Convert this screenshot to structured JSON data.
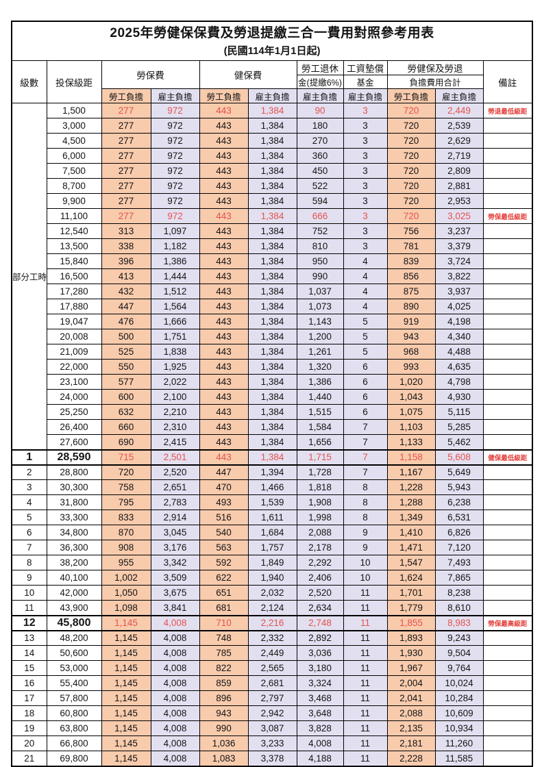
{
  "table": {
    "title": "2025年勞健保保費及勞退提繳三合一費用對照參考用表",
    "subtitle": "(民國114年1月1日起)",
    "colors": {
      "worker_bg": "#F8CBAD",
      "employer_bg": "#E2E0F0",
      "highlight_text": "#E4524E",
      "remark_text": "#E4403C",
      "border": "#000000"
    },
    "header": {
      "level": "級數",
      "bracket": "投保級距",
      "labor_insurance": "勞保費",
      "health_insurance": "健保費",
      "pension_line1": "勞工退休",
      "pension_line2": "金(提繳6%)",
      "wage_fund_line1": "工資墊償",
      "wage_fund_line2": "基金",
      "total_line1": "勞健保及勞退",
      "total_line2": "負擔費用合計",
      "remark": "備註",
      "worker": "勞工負擔",
      "employer": "雇主負擔"
    },
    "part_time_label": "部分工時",
    "rows": [
      {
        "level": "",
        "bracket": "1,500",
        "v": [
          "277",
          "972",
          "443",
          "1,384",
          "90",
          "3",
          "720",
          "2,449"
        ],
        "remark": "勞退最低級距",
        "red": true
      },
      {
        "level": "",
        "bracket": "3,000",
        "v": [
          "277",
          "972",
          "443",
          "1,384",
          "180",
          "3",
          "720",
          "2,539"
        ]
      },
      {
        "level": "",
        "bracket": "4,500",
        "v": [
          "277",
          "972",
          "443",
          "1,384",
          "270",
          "3",
          "720",
          "2,629"
        ]
      },
      {
        "level": "",
        "bracket": "6,000",
        "v": [
          "277",
          "972",
          "443",
          "1,384",
          "360",
          "3",
          "720",
          "2,719"
        ]
      },
      {
        "level": "",
        "bracket": "7,500",
        "v": [
          "277",
          "972",
          "443",
          "1,384",
          "450",
          "3",
          "720",
          "2,809"
        ]
      },
      {
        "level": "",
        "bracket": "8,700",
        "v": [
          "277",
          "972",
          "443",
          "1,384",
          "522",
          "3",
          "720",
          "2,881"
        ]
      },
      {
        "level": "",
        "bracket": "9,900",
        "v": [
          "277",
          "972",
          "443",
          "1,384",
          "594",
          "3",
          "720",
          "2,953"
        ]
      },
      {
        "level": "",
        "bracket": "11,100",
        "v": [
          "277",
          "972",
          "443",
          "1,384",
          "666",
          "3",
          "720",
          "3,025"
        ],
        "remark": "勞保最低級距",
        "red": true
      },
      {
        "level": "",
        "bracket": "12,540",
        "v": [
          "313",
          "1,097",
          "443",
          "1,384",
          "752",
          "3",
          "756",
          "3,237"
        ]
      },
      {
        "level": "",
        "bracket": "13,500",
        "v": [
          "338",
          "1,182",
          "443",
          "1,384",
          "810",
          "3",
          "781",
          "3,379"
        ]
      },
      {
        "level": "",
        "bracket": "15,840",
        "v": [
          "396",
          "1,386",
          "443",
          "1,384",
          "950",
          "4",
          "839",
          "3,724"
        ]
      },
      {
        "level": "",
        "bracket": "16,500",
        "v": [
          "413",
          "1,444",
          "443",
          "1,384",
          "990",
          "4",
          "856",
          "3,822"
        ]
      },
      {
        "level": "",
        "bracket": "17,280",
        "v": [
          "432",
          "1,512",
          "443",
          "1,384",
          "1,037",
          "4",
          "875",
          "3,937"
        ]
      },
      {
        "level": "",
        "bracket": "17,880",
        "v": [
          "447",
          "1,564",
          "443",
          "1,384",
          "1,073",
          "4",
          "890",
          "4,025"
        ]
      },
      {
        "level": "",
        "bracket": "19,047",
        "v": [
          "476",
          "1,666",
          "443",
          "1,384",
          "1,143",
          "5",
          "919",
          "4,198"
        ]
      },
      {
        "level": "",
        "bracket": "20,008",
        "v": [
          "500",
          "1,751",
          "443",
          "1,384",
          "1,200",
          "5",
          "943",
          "4,340"
        ]
      },
      {
        "level": "",
        "bracket": "21,009",
        "v": [
          "525",
          "1,838",
          "443",
          "1,384",
          "1,261",
          "5",
          "968",
          "4,488"
        ]
      },
      {
        "level": "",
        "bracket": "22,000",
        "v": [
          "550",
          "1,925",
          "443",
          "1,384",
          "1,320",
          "6",
          "993",
          "4,635"
        ]
      },
      {
        "level": "",
        "bracket": "23,100",
        "v": [
          "577",
          "2,022",
          "443",
          "1,384",
          "1,386",
          "6",
          "1,020",
          "4,798"
        ]
      },
      {
        "level": "",
        "bracket": "24,000",
        "v": [
          "600",
          "2,100",
          "443",
          "1,384",
          "1,440",
          "6",
          "1,043",
          "4,930"
        ]
      },
      {
        "level": "",
        "bracket": "25,250",
        "v": [
          "632",
          "2,210",
          "443",
          "1,384",
          "1,515",
          "6",
          "1,075",
          "5,115"
        ]
      },
      {
        "level": "",
        "bracket": "26,400",
        "v": [
          "660",
          "2,310",
          "443",
          "1,384",
          "1,584",
          "7",
          "1,103",
          "5,285"
        ]
      },
      {
        "level": "",
        "bracket": "27,600",
        "v": [
          "690",
          "2,415",
          "443",
          "1,384",
          "1,656",
          "7",
          "1,133",
          "5,462"
        ]
      },
      {
        "level": "1",
        "bracket": "28,590",
        "v": [
          "715",
          "2,501",
          "443",
          "1,384",
          "1,715",
          "7",
          "1,158",
          "5,608"
        ],
        "remark": "健保最低級距",
        "red": true,
        "big": true
      },
      {
        "level": "2",
        "bracket": "28,800",
        "v": [
          "720",
          "2,520",
          "447",
          "1,394",
          "1,728",
          "7",
          "1,167",
          "5,649"
        ]
      },
      {
        "level": "3",
        "bracket": "30,300",
        "v": [
          "758",
          "2,651",
          "470",
          "1,466",
          "1,818",
          "8",
          "1,228",
          "5,943"
        ]
      },
      {
        "level": "4",
        "bracket": "31,800",
        "v": [
          "795",
          "2,783",
          "493",
          "1,539",
          "1,908",
          "8",
          "1,288",
          "6,238"
        ]
      },
      {
        "level": "5",
        "bracket": "33,300",
        "v": [
          "833",
          "2,914",
          "516",
          "1,611",
          "1,998",
          "8",
          "1,349",
          "6,531"
        ]
      },
      {
        "level": "6",
        "bracket": "34,800",
        "v": [
          "870",
          "3,045",
          "540",
          "1,684",
          "2,088",
          "9",
          "1,410",
          "6,826"
        ]
      },
      {
        "level": "7",
        "bracket": "36,300",
        "v": [
          "908",
          "3,176",
          "563",
          "1,757",
          "2,178",
          "9",
          "1,471",
          "7,120"
        ]
      },
      {
        "level": "8",
        "bracket": "38,200",
        "v": [
          "955",
          "3,342",
          "592",
          "1,849",
          "2,292",
          "10",
          "1,547",
          "7,493"
        ]
      },
      {
        "level": "9",
        "bracket": "40,100",
        "v": [
          "1,002",
          "3,509",
          "622",
          "1,940",
          "2,406",
          "10",
          "1,624",
          "7,865"
        ]
      },
      {
        "level": "10",
        "bracket": "42,000",
        "v": [
          "1,050",
          "3,675",
          "651",
          "2,032",
          "2,520",
          "11",
          "1,701",
          "8,238"
        ]
      },
      {
        "level": "11",
        "bracket": "43,900",
        "v": [
          "1,098",
          "3,841",
          "681",
          "2,124",
          "2,634",
          "11",
          "1,779",
          "8,610"
        ]
      },
      {
        "level": "12",
        "bracket": "45,800",
        "v": [
          "1,145",
          "4,008",
          "710",
          "2,216",
          "2,748",
          "11",
          "1,855",
          "8,983"
        ],
        "remark": "勞保最高級距",
        "red": true,
        "big": true
      },
      {
        "level": "13",
        "bracket": "48,200",
        "v": [
          "1,145",
          "4,008",
          "748",
          "2,332",
          "2,892",
          "11",
          "1,893",
          "9,243"
        ]
      },
      {
        "level": "14",
        "bracket": "50,600",
        "v": [
          "1,145",
          "4,008",
          "785",
          "2,449",
          "3,036",
          "11",
          "1,930",
          "9,504"
        ]
      },
      {
        "level": "15",
        "bracket": "53,000",
        "v": [
          "1,145",
          "4,008",
          "822",
          "2,565",
          "3,180",
          "11",
          "1,967",
          "9,764"
        ]
      },
      {
        "level": "16",
        "bracket": "55,400",
        "v": [
          "1,145",
          "4,008",
          "859",
          "2,681",
          "3,324",
          "11",
          "2,004",
          "10,024"
        ]
      },
      {
        "level": "17",
        "bracket": "57,800",
        "v": [
          "1,145",
          "4,008",
          "896",
          "2,797",
          "3,468",
          "11",
          "2,041",
          "10,284"
        ]
      },
      {
        "level": "18",
        "bracket": "60,800",
        "v": [
          "1,145",
          "4,008",
          "943",
          "2,942",
          "3,648",
          "11",
          "2,088",
          "10,609"
        ]
      },
      {
        "level": "19",
        "bracket": "63,800",
        "v": [
          "1,145",
          "4,008",
          "990",
          "3,087",
          "3,828",
          "11",
          "2,135",
          "10,934"
        ]
      },
      {
        "level": "20",
        "bracket": "66,800",
        "v": [
          "1,145",
          "4,008",
          "1,036",
          "3,233",
          "4,008",
          "11",
          "2,181",
          "11,260"
        ]
      },
      {
        "level": "21",
        "bracket": "69,800",
        "v": [
          "1,145",
          "4,008",
          "1,083",
          "3,378",
          "4,188",
          "11",
          "2,228",
          "11,585"
        ]
      }
    ]
  }
}
